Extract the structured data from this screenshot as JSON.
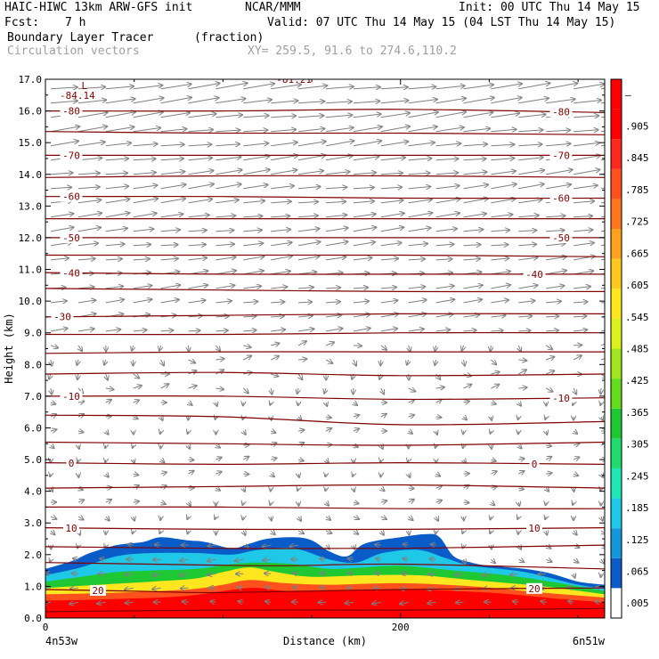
{
  "header": {
    "model": "HAIC-HIWC 13km ARW-GFS init",
    "org": "NCAR/MMM",
    "init": "Init: 00 UTC Thu 14 May 15",
    "fcst_label": "Fcst:",
    "fcst_value": "7 h",
    "valid": "Valid: 07 UTC Thu 14 May 15 (04 LST Thu 14 May 15)",
    "field": "Boundary Layer Tracer",
    "units": "(fraction)",
    "vectors": "Circulation vectors",
    "xy": "XY= 259.5, 91.6 to 274.6,110.2"
  },
  "chart_data": {
    "type": "heatmap",
    "xlabel": "Distance (km)",
    "ylabel": "Height (km)",
    "x_ticks": [
      {
        "value": 0,
        "label": "0"
      },
      {
        "value": 200,
        "label": "200"
      }
    ],
    "x_end_labels": {
      "left": "4n53w",
      "right": "6n51w"
    },
    "xlim": [
      0,
      315
    ],
    "ylim": [
      0,
      17
    ],
    "y_ticks": [
      "0.0",
      "1.0",
      "2.0",
      "3.0",
      "4.0",
      "5.0",
      "6.0",
      "7.0",
      "8.0",
      "9.0",
      "10.0",
      "11.0",
      "12.0",
      "13.0",
      "14.0",
      "15.0",
      "16.0",
      "17.0"
    ],
    "colorbar": {
      "labels": [
        ".005",
        ".065",
        ".125",
        ".185",
        ".245",
        ".305",
        ".365",
        ".425",
        ".485",
        ".545",
        ".605",
        ".665",
        ".725",
        ".785",
        ".845",
        ".905",
        "–"
      ],
      "colors": [
        "#ffffff",
        "#0a5cc8",
        "#1496dc",
        "#1ec8e6",
        "#1ee6b4",
        "#1edc6e",
        "#1ec832",
        "#64dc1e",
        "#a0e61e",
        "#dcf01e",
        "#ffe61e",
        "#ffc81e",
        "#ffa01e",
        "#ff781e",
        "#ff501e",
        "#ff281e",
        "#ff0000",
        "#ff0000"
      ]
    },
    "contours": [
      {
        "label": "-80",
        "label_positions": [
          80,
          630
        ],
        "points": [
          [
            0,
            16.0
          ],
          [
            100,
            16.0
          ],
          [
            200,
            16.05
          ],
          [
            315,
            15.95
          ]
        ]
      },
      {
        "label": "-70",
        "label_positions": [
          80,
          630
        ],
        "points": [
          [
            0,
            14.6
          ],
          [
            100,
            14.6
          ],
          [
            200,
            14.6
          ],
          [
            315,
            14.6
          ]
        ]
      },
      {
        "label": "-60",
        "label_positions": [
          80,
          630
        ],
        "points": [
          [
            0,
            13.3
          ],
          [
            100,
            13.3
          ],
          [
            200,
            13.25
          ],
          [
            315,
            13.25
          ]
        ]
      },
      {
        "label": "-50",
        "label_positions": [
          80,
          630
        ],
        "points": [
          [
            0,
            12.0
          ],
          [
            100,
            12.0
          ],
          [
            200,
            12.0
          ],
          [
            315,
            12.0
          ]
        ]
      },
      {
        "label": "-40",
        "label_positions": [
          80,
          600
        ],
        "points": [
          [
            0,
            10.9
          ],
          [
            100,
            10.85
          ],
          [
            200,
            10.85
          ],
          [
            315,
            10.85
          ]
        ]
      },
      {
        "label": "-30",
        "label_positions": [
          70
        ],
        "points": [
          [
            0,
            9.5
          ],
          [
            100,
            9.55
          ],
          [
            200,
            9.6
          ],
          [
            315,
            9.6
          ]
        ]
      },
      {
        "label": "-10",
        "label_positions": [
          80,
          630
        ],
        "points": [
          [
            0,
            7.0
          ],
          [
            100,
            7.0
          ],
          [
            200,
            6.9
          ],
          [
            315,
            6.95
          ]
        ]
      },
      {
        "label": "0",
        "label_positions": [
          80,
          600
        ],
        "points": [
          [
            0,
            4.9
          ],
          [
            100,
            4.85
          ],
          [
            200,
            4.9
          ],
          [
            315,
            4.85
          ]
        ]
      },
      {
        "label": "10",
        "label_positions": [
          80,
          600
        ],
        "points": [
          [
            0,
            2.85
          ],
          [
            100,
            2.8
          ],
          [
            200,
            2.8
          ],
          [
            315,
            2.85
          ]
        ]
      },
      {
        "label": "20",
        "label_positions": [
          110,
          600
        ],
        "points": [
          [
            0,
            0.9
          ],
          [
            50,
            0.85
          ],
          [
            100,
            0.8
          ],
          [
            200,
            0.9
          ],
          [
            315,
            0.95
          ]
        ]
      }
    ],
    "contours_unlabeled": [
      [
        [
          0,
          15.35
        ],
        [
          100,
          15.3
        ],
        [
          200,
          15.3
        ],
        [
          315,
          15.25
        ]
      ],
      [
        [
          0,
          13.9
        ],
        [
          100,
          13.95
        ],
        [
          200,
          13.95
        ],
        [
          315,
          13.9
        ]
      ],
      [
        [
          0,
          12.6
        ],
        [
          100,
          12.6
        ],
        [
          200,
          12.6
        ],
        [
          315,
          12.6
        ]
      ],
      [
        [
          0,
          11.45
        ],
        [
          100,
          11.45
        ],
        [
          200,
          11.45
        ],
        [
          315,
          11.4
        ]
      ],
      [
        [
          0,
          10.4
        ],
        [
          100,
          10.35
        ],
        [
          200,
          10.3
        ],
        [
          315,
          10.3
        ]
      ],
      [
        [
          0,
          8.95
        ],
        [
          100,
          8.95
        ],
        [
          200,
          9.0
        ],
        [
          315,
          9.0
        ]
      ],
      [
        [
          0,
          8.35
        ],
        [
          100,
          8.4
        ],
        [
          200,
          8.4
        ],
        [
          315,
          8.4
        ]
      ],
      [
        [
          0,
          7.7
        ],
        [
          100,
          7.75
        ],
        [
          200,
          7.65
        ],
        [
          315,
          7.7
        ]
      ],
      [
        [
          0,
          6.4
        ],
        [
          100,
          6.35
        ],
        [
          200,
          6.1
        ],
        [
          315,
          6.2
        ]
      ],
      [
        [
          0,
          5.55
        ],
        [
          100,
          5.5
        ],
        [
          200,
          5.45
        ],
        [
          315,
          5.55
        ]
      ],
      [
        [
          0,
          4.1
        ],
        [
          100,
          4.15
        ],
        [
          200,
          4.2
        ],
        [
          315,
          4.1
        ]
      ],
      [
        [
          0,
          3.5
        ],
        [
          100,
          3.5
        ],
        [
          200,
          3.45
        ],
        [
          315,
          3.45
        ]
      ],
      [
        [
          0,
          2.25
        ],
        [
          100,
          2.2
        ],
        [
          200,
          2.2
        ],
        [
          315,
          2.3
        ]
      ],
      [
        [
          0,
          1.75
        ],
        [
          60,
          1.7
        ],
        [
          130,
          1.65
        ],
        [
          200,
          1.7
        ],
        [
          315,
          1.55
        ]
      ],
      [
        [
          0,
          0.2
        ],
        [
          100,
          0.25
        ],
        [
          200,
          0.25
        ],
        [
          315,
          0.3
        ]
      ]
    ],
    "annotations": [
      {
        "text": "-84.14",
        "x": 18,
        "y": 16.5
      },
      {
        "text": "L",
        "x": 22,
        "y": 16.8
      },
      {
        "text": "-81.21",
        "x": 140,
        "y": 17.0
      }
    ],
    "tracer_layers": [
      {
        "level": 0.005,
        "top": [
          [
            0,
            1.55
          ],
          [
            15,
            1.8
          ],
          [
            25,
            2.05
          ],
          [
            40,
            2.3
          ],
          [
            55,
            2.4
          ],
          [
            65,
            2.55
          ],
          [
            80,
            2.45
          ],
          [
            90,
            2.4
          ],
          [
            105,
            2.2
          ],
          [
            115,
            2.35
          ],
          [
            125,
            2.5
          ],
          [
            140,
            2.55
          ],
          [
            150,
            2.45
          ],
          [
            160,
            2.1
          ],
          [
            170,
            1.95
          ],
          [
            180,
            2.35
          ],
          [
            200,
            2.55
          ],
          [
            215,
            2.65
          ],
          [
            222,
            2.55
          ],
          [
            230,
            1.95
          ],
          [
            240,
            1.75
          ],
          [
            250,
            1.65
          ],
          [
            270,
            1.55
          ],
          [
            285,
            1.4
          ],
          [
            300,
            1.15
          ],
          [
            315,
            1.05
          ]
        ]
      },
      {
        "level": 0.125,
        "top": [
          [
            0,
            1.35
          ],
          [
            20,
            1.6
          ],
          [
            40,
            1.95
          ],
          [
            60,
            2.05
          ],
          [
            85,
            2.05
          ],
          [
            105,
            2.0
          ],
          [
            120,
            2.15
          ],
          [
            140,
            2.2
          ],
          [
            160,
            1.85
          ],
          [
            175,
            1.75
          ],
          [
            190,
            2.05
          ],
          [
            210,
            2.15
          ],
          [
            225,
            1.9
          ],
          [
            240,
            1.65
          ],
          [
            270,
            1.45
          ],
          [
            300,
            1.05
          ],
          [
            315,
            0.95
          ]
        ]
      },
      {
        "level": 0.305,
        "top": [
          [
            0,
            1.15
          ],
          [
            20,
            1.3
          ],
          [
            40,
            1.45
          ],
          [
            60,
            1.5
          ],
          [
            85,
            1.55
          ],
          [
            105,
            1.7
          ],
          [
            120,
            1.75
          ],
          [
            140,
            1.7
          ],
          [
            160,
            1.55
          ],
          [
            180,
            1.6
          ],
          [
            200,
            1.65
          ],
          [
            230,
            1.5
          ],
          [
            260,
            1.35
          ],
          [
            290,
            1.1
          ],
          [
            315,
            0.85
          ]
        ]
      },
      {
        "level": 0.545,
        "top": [
          [
            0,
            0.95
          ],
          [
            30,
            1.05
          ],
          [
            60,
            1.15
          ],
          [
            85,
            1.25
          ],
          [
            100,
            1.45
          ],
          [
            115,
            1.6
          ],
          [
            130,
            1.45
          ],
          [
            150,
            1.3
          ],
          [
            180,
            1.35
          ],
          [
            210,
            1.35
          ],
          [
            240,
            1.2
          ],
          [
            280,
            1.0
          ],
          [
            315,
            0.75
          ]
        ]
      },
      {
        "level": 0.785,
        "top": [
          [
            0,
            0.75
          ],
          [
            40,
            0.8
          ],
          [
            80,
            0.9
          ],
          [
            100,
            1.05
          ],
          [
            115,
            1.2
          ],
          [
            135,
            1.1
          ],
          [
            160,
            1.05
          ],
          [
            200,
            1.1
          ],
          [
            240,
            1.0
          ],
          [
            280,
            0.8
          ],
          [
            315,
            0.65
          ]
        ]
      },
      {
        "level": 0.905,
        "top": [
          [
            0,
            0.55
          ],
          [
            40,
            0.6
          ],
          [
            80,
            0.7
          ],
          [
            115,
            0.95
          ],
          [
            140,
            0.85
          ],
          [
            200,
            0.9
          ],
          [
            250,
            0.8
          ],
          [
            290,
            0.6
          ],
          [
            315,
            0.5
          ]
        ]
      }
    ]
  }
}
